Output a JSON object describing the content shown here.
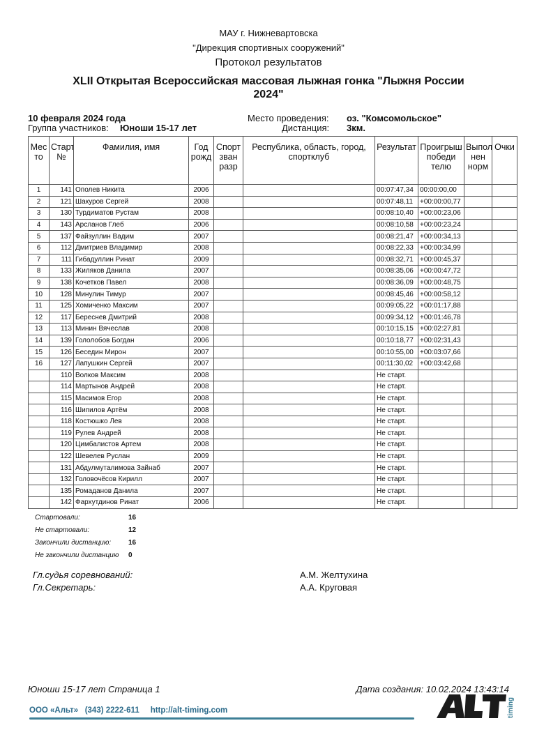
{
  "header": {
    "org": "МАУ г. Нижневартовска",
    "dept": "\"Дирекция спортивных сооружений\"",
    "doc_title": "Протокол результатов",
    "event": "XLII Открытая Всероссийская массовая лыжная гонка \"Лыжня России 2024\""
  },
  "info": {
    "date": "10 февраля 2024 года",
    "group_label": "Группа участников:",
    "group": "Юноши 15-17 лет",
    "venue_label": "Место проведения:",
    "venue": "оз. \"Комсомольское\"",
    "distance_label": "Дистанция:",
    "distance": "3км."
  },
  "table": {
    "columns": [
      "Место",
      "Старт №",
      "Фамилия, имя",
      "Год рожд",
      "Спорт зван разр",
      "Республика, область, город, спортклуб",
      "Результат",
      "Проигрыш победителю",
      "Выполнен норм",
      "Очки"
    ],
    "column_display": [
      "Мес то",
      "Старт №",
      "Фамилия, имя",
      "Год рожд",
      "Спорт зван разр",
      "Республика, область, город, спортклуб",
      "Результат",
      "Проигрыш победи телю",
      "Выпол нен норм",
      "Очки"
    ],
    "rows": [
      [
        "1",
        "141",
        "Ополев Никита",
        "2006",
        "",
        "",
        "00:07:47,34",
        "00:00:00,00",
        "",
        ""
      ],
      [
        "2",
        "121",
        "Шакуров Сергей",
        "2008",
        "",
        "",
        "00:07:48,11",
        "+00:00:00,77",
        "",
        ""
      ],
      [
        "3",
        "130",
        "Турдиматов Рустам",
        "2008",
        "",
        "",
        "00:08:10,40",
        "+00:00:23,06",
        "",
        ""
      ],
      [
        "4",
        "143",
        "Арсланов Глеб",
        "2006",
        "",
        "",
        "00:08:10,58",
        "+00:00:23,24",
        "",
        ""
      ],
      [
        "5",
        "137",
        "Файзуллин Вадим",
        "2007",
        "",
        "",
        "00:08:21,47",
        "+00:00:34,13",
        "",
        ""
      ],
      [
        "6",
        "112",
        "Дмитриев Владимир",
        "2008",
        "",
        "",
        "00:08:22,33",
        "+00:00:34,99",
        "",
        ""
      ],
      [
        "7",
        "111",
        "Гибадуллин Ринат",
        "2009",
        "",
        "",
        "00:08:32,71",
        "+00:00:45,37",
        "",
        ""
      ],
      [
        "8",
        "133",
        "Жиляков Данила",
        "2007",
        "",
        "",
        "00:08:35,06",
        "+00:00:47,72",
        "",
        ""
      ],
      [
        "9",
        "138",
        "Кочетков Павел",
        "2008",
        "",
        "",
        "00:08:36,09",
        "+00:00:48,75",
        "",
        ""
      ],
      [
        "10",
        "128",
        "Минулин Тимур",
        "2007",
        "",
        "",
        "00:08:45,46",
        "+00:00:58,12",
        "",
        ""
      ],
      [
        "11",
        "125",
        "Хомиченко Максим",
        "2007",
        "",
        "",
        "00:09:05,22",
        "+00:01:17,88",
        "",
        ""
      ],
      [
        "12",
        "117",
        "Береснев Дмитрий",
        "2008",
        "",
        "",
        "00:09:34,12",
        "+00:01:46,78",
        "",
        ""
      ],
      [
        "13",
        "113",
        "Минин Вячеслав",
        "2008",
        "",
        "",
        "00:10:15,15",
        "+00:02:27,81",
        "",
        ""
      ],
      [
        "14",
        "139",
        "Гололобов Богдан",
        "2006",
        "",
        "",
        "00:10:18,77",
        "+00:02:31,43",
        "",
        ""
      ],
      [
        "15",
        "126",
        "Беседин Мирон",
        "2007",
        "",
        "",
        "00:10:55,00",
        "+00:03:07,66",
        "",
        ""
      ],
      [
        "16",
        "127",
        "Лапушкин Сергей",
        "2007",
        "",
        "",
        "00:11:30,02",
        "+00:03:42,68",
        "",
        ""
      ],
      [
        "",
        "110",
        "Волков Максим",
        "2008",
        "",
        "",
        "Не старт.",
        "",
        "",
        ""
      ],
      [
        "",
        "114",
        "Мартынов Андрей",
        "2008",
        "",
        "",
        "Не старт.",
        "",
        "",
        ""
      ],
      [
        "",
        "115",
        "Масимов Егор",
        "2008",
        "",
        "",
        "Не старт.",
        "",
        "",
        ""
      ],
      [
        "",
        "116",
        "Шипилов Артём",
        "2008",
        "",
        "",
        "Не старт.",
        "",
        "",
        ""
      ],
      [
        "",
        "118",
        "Костюшко Лев",
        "2008",
        "",
        "",
        "Не старт.",
        "",
        "",
        ""
      ],
      [
        "",
        "119",
        "Рулев Андрей",
        "2008",
        "",
        "",
        "Не старт.",
        "",
        "",
        ""
      ],
      [
        "",
        "120",
        "Цимбалистов Артем",
        "2008",
        "",
        "",
        "Не старт.",
        "",
        "",
        ""
      ],
      [
        "",
        "122",
        "Шевелев Руслан",
        "2009",
        "",
        "",
        "Не старт.",
        "",
        "",
        ""
      ],
      [
        "",
        "131",
        "Абдулмуталимова Зайнаб",
        "2007",
        "",
        "",
        "Не старт.",
        "",
        "",
        ""
      ],
      [
        "",
        "132",
        "Головочёсов Кирилл",
        "2007",
        "",
        "",
        "Не старт.",
        "",
        "",
        ""
      ],
      [
        "",
        "135",
        "Ромаданов Данила",
        "2007",
        "",
        "",
        "Не старт.",
        "",
        "",
        ""
      ],
      [
        "",
        "142",
        "Фархутдинов Ринат",
        "2006",
        "",
        "",
        "Не старт.",
        "",
        "",
        ""
      ]
    ]
  },
  "stats": [
    {
      "label": "Стартовали:",
      "value": "16"
    },
    {
      "label": "Не стартовали:",
      "value": "12"
    },
    {
      "label": "Закончили дистанцию:",
      "value": "16"
    },
    {
      "label": "Не закончили дистанцию",
      "value": "0"
    }
  ],
  "officials": [
    {
      "role": "Гл.судья соревнований:",
      "name": "А.М. Желтухина"
    },
    {
      "role": "Гл.Секретарь:",
      "name": "А.А. Круговая"
    }
  ],
  "footer": {
    "page": "Юноши 15-17 лет Страница 1",
    "created": "Дата создания: 10.02.2024 13:43:14",
    "company": "ООО «Альт»   (343) 2222-611     http://alt-timing.com",
    "logo_text": "ALT timing",
    "accent": "#3d7f96"
  }
}
